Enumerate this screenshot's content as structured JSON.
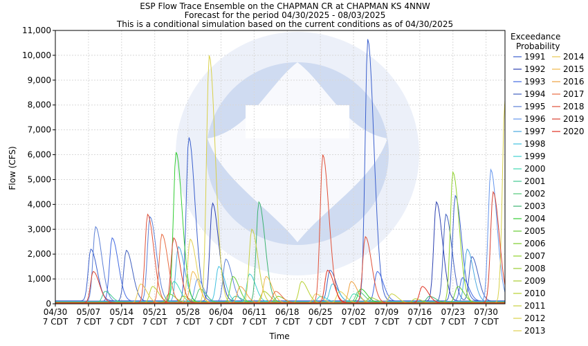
{
  "chart_data": {
    "type": "line",
    "title_lines": [
      "ESP Flow Trace Ensemble on the CHAPMAN CR at CHAPMAN KS 4NNW",
      "Forecast for the period 04/30/2025 - 08/03/2025",
      "This is a conditional simulation based on the current conditions as of 04/30/2025"
    ],
    "xlabel": "Time",
    "ylabel": "Flow (CFS)",
    "x_range": [
      "04/30",
      "08/03"
    ],
    "ylim": [
      0,
      11000
    ],
    "y_ticks": [
      0,
      1000,
      2000,
      3000,
      4000,
      5000,
      6000,
      7000,
      8000,
      9000,
      10000,
      11000
    ],
    "y_tick_labels": [
      "0",
      "1,000",
      "2,000",
      "3,000",
      "4,000",
      "5,000",
      "6,000",
      "7,000",
      "8,000",
      "9,000",
      "10,000",
      "11,000"
    ],
    "x_ticks": [
      {
        "day": 0,
        "date": "04/30",
        "tz": "7 CDT"
      },
      {
        "day": 7,
        "date": "05/07",
        "tz": "7 CDT"
      },
      {
        "day": 14,
        "date": "05/14",
        "tz": "7 CDT"
      },
      {
        "day": 21,
        "date": "05/21",
        "tz": "7 CDT"
      },
      {
        "day": 28,
        "date": "05/28",
        "tz": "7 CDT"
      },
      {
        "day": 35,
        "date": "06/04",
        "tz": "7 CDT"
      },
      {
        "day": 42,
        "date": "06/11",
        "tz": "7 CDT"
      },
      {
        "day": 49,
        "date": "06/18",
        "tz": "7 CDT"
      },
      {
        "day": 56,
        "date": "06/25",
        "tz": "7 CDT"
      },
      {
        "day": 63,
        "date": "07/02",
        "tz": "7 CDT"
      },
      {
        "day": 70,
        "date": "07/09",
        "tz": "7 CDT"
      },
      {
        "day": 77,
        "date": "07/16",
        "tz": "7 CDT"
      },
      {
        "day": 84,
        "date": "07/23",
        "tz": "7 CDT"
      },
      {
        "day": 91,
        "date": "07/30",
        "tz": "7 CDT"
      }
    ],
    "day_span": 95,
    "grid": true,
    "legend_position": "right",
    "legend_title": [
      "Exceedance",
      "Probability"
    ],
    "series": [
      {
        "name": "1991",
        "color": "#3a5fcd",
        "baseline": 120,
        "peaks": [
          [
            7.5,
            2200
          ],
          [
            28.2,
            6700
          ],
          [
            66.0,
            10650
          ],
          [
            84.5,
            4350
          ]
        ]
      },
      {
        "name": "1992",
        "color": "#2a3fb0",
        "baseline": 110,
        "peaks": [
          [
            33.2,
            4050
          ],
          [
            80.5,
            4100
          ]
        ]
      },
      {
        "name": "1993",
        "color": "#4169e1",
        "baseline": 100,
        "peaks": [
          [
            12.0,
            2650
          ],
          [
            68.0,
            1300
          ],
          [
            86.0,
            1050
          ]
        ]
      },
      {
        "name": "1994",
        "color": "#3f5fbf",
        "baseline": 100,
        "peaks": [
          [
            15.0,
            2150
          ],
          [
            58.0,
            1350
          ],
          [
            82.5,
            3600
          ],
          [
            88.0,
            1900
          ]
        ]
      },
      {
        "name": "1995",
        "color": "#5b7fd6",
        "baseline": 90,
        "peaks": [
          [
            8.5,
            3100
          ],
          [
            20.0,
            3500
          ],
          [
            36.0,
            1800
          ]
        ]
      },
      {
        "name": "1996",
        "color": "#6495ed",
        "baseline": 90,
        "peaks": [
          [
            30.0,
            1000
          ],
          [
            92.0,
            5400
          ]
        ]
      },
      {
        "name": "1997",
        "color": "#4aa8e0",
        "baseline": 80,
        "peaks": [
          [
            26.0,
            2300
          ],
          [
            87.0,
            2200
          ]
        ]
      },
      {
        "name": "1998",
        "color": "#40c0e0",
        "baseline": 80,
        "peaks": [
          [
            34.5,
            1500
          ],
          [
            58.5,
            800
          ]
        ]
      },
      {
        "name": "1999",
        "color": "#40d0d0",
        "baseline": 70,
        "peaks": [
          [
            41.0,
            1200
          ],
          [
            56.0,
            300
          ]
        ]
      },
      {
        "name": "2000",
        "color": "#40d8b0",
        "baseline": 70,
        "peaks": [
          [
            25.0,
            900
          ],
          [
            63.0,
            400
          ]
        ]
      },
      {
        "name": "2001",
        "color": "#40c890",
        "baseline": 60,
        "peaks": [
          [
            10.5,
            500
          ],
          [
            38.0,
            300
          ]
        ]
      },
      {
        "name": "2002",
        "color": "#50c878",
        "baseline": 60,
        "peaks": [
          [
            30.5,
            600
          ],
          [
            64.0,
            500
          ]
        ]
      },
      {
        "name": "2003",
        "color": "#3cb371",
        "baseline": 60,
        "peaks": [
          [
            43.0,
            4100
          ],
          [
            79.0,
            300
          ]
        ]
      },
      {
        "name": "2004",
        "color": "#32cd32",
        "baseline": 60,
        "peaks": [
          [
            25.5,
            6100
          ],
          [
            64.5,
            600
          ]
        ]
      },
      {
        "name": "2005",
        "color": "#66cc33",
        "baseline": 50,
        "peaks": [
          [
            37.5,
            1100
          ],
          [
            85.0,
            700
          ]
        ]
      },
      {
        "name": "2006",
        "color": "#7ccd2c",
        "baseline": 50,
        "peaks": [
          [
            24.0,
            400
          ],
          [
            47.0,
            300
          ]
        ]
      },
      {
        "name": "2007",
        "color": "#8fd12a",
        "baseline": 50,
        "peaks": [
          [
            84.0,
            5300
          ]
        ]
      },
      {
        "name": "2008",
        "color": "#9acd32",
        "baseline": 50,
        "peaks": [
          [
            27.0,
            300
          ],
          [
            66.5,
            250
          ]
        ]
      },
      {
        "name": "2009",
        "color": "#a8cc30",
        "baseline": 40,
        "peaks": [
          [
            44.0,
            500
          ],
          [
            76.0,
            200
          ]
        ]
      },
      {
        "name": "2010",
        "color": "#b8d030",
        "baseline": 40,
        "peaks": [
          [
            20.5,
            700
          ],
          [
            52.0,
            900
          ]
        ]
      },
      {
        "name": "2011",
        "color": "#c8d040",
        "baseline": 40,
        "peaks": [
          [
            41.5,
            3000
          ],
          [
            71.0,
            400
          ]
        ]
      },
      {
        "name": "2012",
        "color": "#d8d048",
        "baseline": 40,
        "peaks": [
          [
            32.5,
            10000
          ],
          [
            95.0,
            8200
          ]
        ]
      },
      {
        "name": "2013",
        "color": "#e0d050",
        "baseline": 40,
        "peaks": [
          [
            28.5,
            2600
          ],
          [
            60.0,
            500
          ]
        ]
      },
      {
        "name": "2014",
        "color": "#e8c850",
        "baseline": 40,
        "peaks": [
          [
            18.0,
            800
          ],
          [
            55.0,
            400
          ]
        ]
      },
      {
        "name": "2015",
        "color": "#f0b848",
        "baseline": 40,
        "peaks": [
          [
            29.0,
            1300
          ],
          [
            44.5,
            1100
          ]
        ]
      },
      {
        "name": "2016",
        "color": "#eda040",
        "baseline": 40,
        "peaks": [
          [
            39.0,
            700
          ],
          [
            62.5,
            900
          ]
        ]
      },
      {
        "name": "2017",
        "color": "#e86a40",
        "baseline": 40,
        "peaks": [
          [
            22.5,
            2800
          ],
          [
            46.5,
            500
          ]
        ]
      },
      {
        "name": "2018",
        "color": "#e05038",
        "baseline": 40,
        "peaks": [
          [
            19.5,
            3600
          ],
          [
            56.5,
            6000
          ],
          [
            65.5,
            2700
          ]
        ]
      },
      {
        "name": "2019",
        "color": "#d84030",
        "baseline": 40,
        "peaks": [
          [
            8.0,
            1300
          ],
          [
            25.0,
            2650
          ],
          [
            92.5,
            4500
          ]
        ]
      },
      {
        "name": "2020",
        "color": "#e03020",
        "baseline": 40,
        "peaks": [
          [
            57.5,
            1350
          ],
          [
            77.5,
            700
          ]
        ]
      }
    ]
  }
}
